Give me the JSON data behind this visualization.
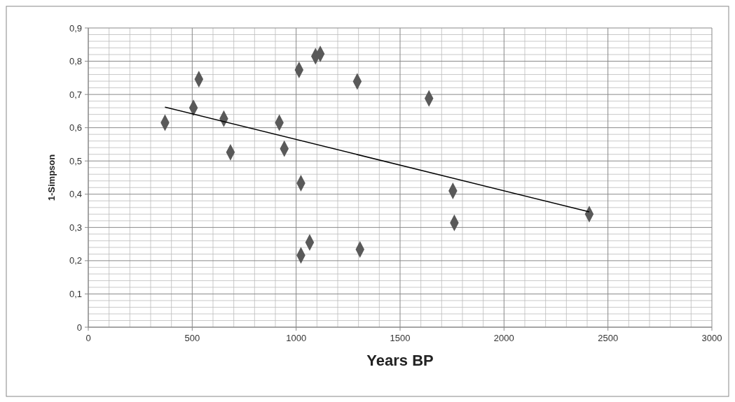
{
  "chart_data": {
    "type": "scatter",
    "xlabel": "Years BP",
    "ylabel": "1-Simpson",
    "xlim": [
      0,
      3000
    ],
    "xticks": [
      0,
      500,
      1000,
      1500,
      2000,
      2500,
      3000
    ],
    "ylim": [
      0,
      0.9
    ],
    "yticks": [
      {
        "value": 0,
        "label": "0"
      },
      {
        "value": 0.1,
        "label": "0,1"
      },
      {
        "value": 0.2,
        "label": "0,2"
      },
      {
        "value": 0.3,
        "label": "0,3"
      },
      {
        "value": 0.4,
        "label": "0,4"
      },
      {
        "value": 0.5,
        "label": "0,5"
      },
      {
        "value": 0.6,
        "label": "0,6"
      },
      {
        "value": 0.7,
        "label": "0,7"
      },
      {
        "value": 0.8,
        "label": "0,8"
      },
      {
        "value": 0.9,
        "label": "0,9"
      }
    ],
    "grid": true,
    "series": [
      {
        "marker": "diamond",
        "color": "#595959",
        "x": [
          369,
          506,
          532,
          652,
          684,
          919,
          943,
          1014,
          1023,
          1023,
          1065,
          1093,
          1116,
          1294,
          1307,
          1639,
          1754,
          1761,
          2410
        ],
        "values": [
          0.615,
          0.66,
          0.746,
          0.627,
          0.526,
          0.615,
          0.537,
          0.774,
          0.433,
          0.216,
          0.255,
          0.815,
          0.822,
          0.739,
          0.234,
          0.688,
          0.41,
          0.314,
          0.34
        ]
      },
      {
        "type": "line",
        "color": "#000000",
        "x": [
          369,
          2410
        ],
        "values": [
          0.662,
          0.347
        ]
      }
    ]
  }
}
